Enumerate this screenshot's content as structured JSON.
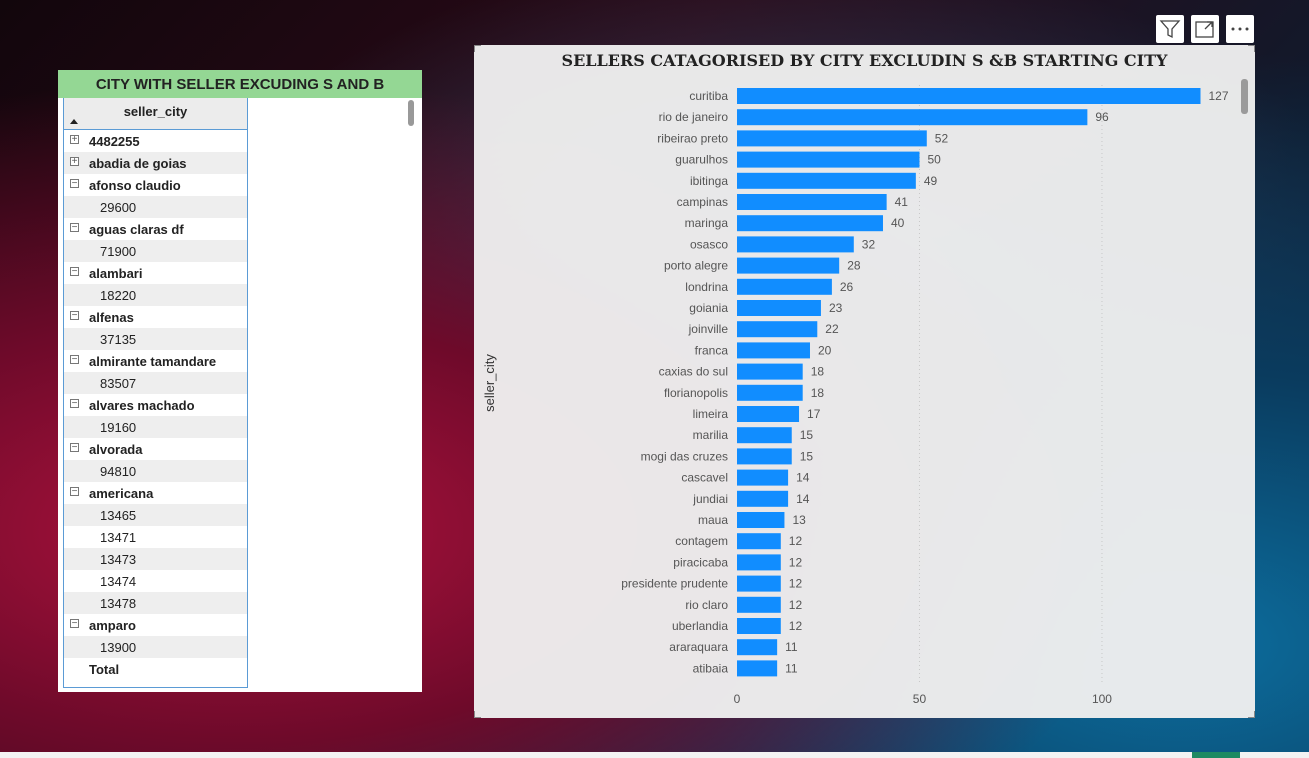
{
  "table": {
    "title": "CITY WITH SELLER EXCUDING S AND B",
    "column_header": "seller_city",
    "rows": [
      {
        "type": "city",
        "label": "4482255",
        "expanded": false
      },
      {
        "type": "city",
        "label": "abadia de goias",
        "expanded": false
      },
      {
        "type": "city",
        "label": "afonso claudio",
        "expanded": true
      },
      {
        "type": "zip",
        "label": "29600"
      },
      {
        "type": "city",
        "label": "aguas claras df",
        "expanded": true
      },
      {
        "type": "zip",
        "label": "71900"
      },
      {
        "type": "city",
        "label": "alambari",
        "expanded": true
      },
      {
        "type": "zip",
        "label": "18220"
      },
      {
        "type": "city",
        "label": "alfenas",
        "expanded": true
      },
      {
        "type": "zip",
        "label": "37135"
      },
      {
        "type": "city",
        "label": "almirante tamandare",
        "expanded": true
      },
      {
        "type": "zip",
        "label": "83507"
      },
      {
        "type": "city",
        "label": "alvares machado",
        "expanded": true
      },
      {
        "type": "zip",
        "label": "19160"
      },
      {
        "type": "city",
        "label": "alvorada",
        "expanded": true
      },
      {
        "type": "zip",
        "label": "94810"
      },
      {
        "type": "city",
        "label": "americana",
        "expanded": true
      },
      {
        "type": "zip",
        "label": "13465"
      },
      {
        "type": "zip",
        "label": "13471"
      },
      {
        "type": "zip",
        "label": "13473"
      },
      {
        "type": "zip",
        "label": "13474"
      },
      {
        "type": "zip",
        "label": "13478"
      },
      {
        "type": "city",
        "label": "amparo",
        "expanded": true
      },
      {
        "type": "zip",
        "label": "13900"
      },
      {
        "type": "total",
        "label": "Total"
      }
    ]
  },
  "header_icons": [
    "filter-icon",
    "focus-mode-icon",
    "more-options-icon"
  ],
  "chart_data": {
    "type": "bar",
    "orientation": "horizontal",
    "title": "SELLERS CATAGORISED BY CITY EXCLUDIN S &B STARTING CITY",
    "ylabel": "seller_city",
    "xlabel": "",
    "categories": [
      "curitiba",
      "rio de janeiro",
      "ribeirao preto",
      "guarulhos",
      "ibitinga",
      "campinas",
      "maringa",
      "osasco",
      "porto alegre",
      "londrina",
      "goiania",
      "joinville",
      "franca",
      "caxias do sul",
      "florianopolis",
      "limeira",
      "marilia",
      "mogi das cruzes",
      "cascavel",
      "jundiai",
      "maua",
      "contagem",
      "piracicaba",
      "presidente prudente",
      "rio claro",
      "uberlandia",
      "araraquara",
      "atibaia"
    ],
    "values": [
      127,
      96,
      52,
      50,
      49,
      41,
      40,
      32,
      28,
      26,
      23,
      22,
      20,
      18,
      18,
      17,
      15,
      15,
      14,
      14,
      13,
      12,
      12,
      12,
      12,
      12,
      11,
      11
    ],
    "xticks": [
      0,
      50,
      100
    ],
    "xlim": [
      0,
      137
    ],
    "grid": true,
    "data_labels": true,
    "bar_color": "#118dff"
  }
}
